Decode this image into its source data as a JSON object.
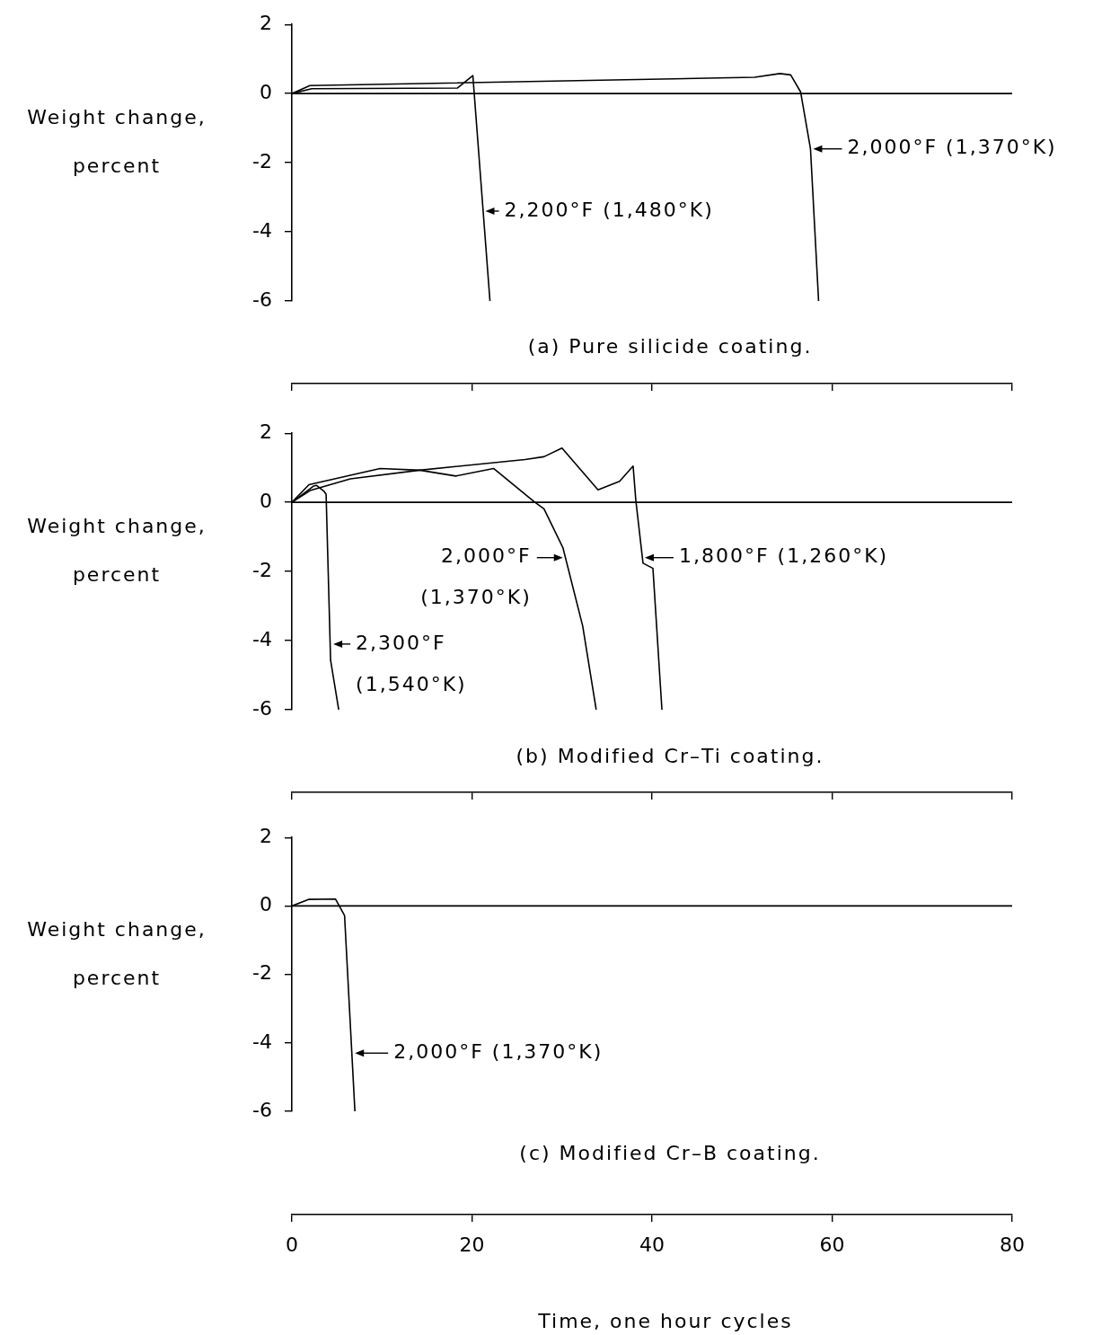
{
  "chart_data": [
    {
      "type": "line",
      "title": "(a) Pure silicide coating.",
      "ylabel": "Weight change, percent",
      "xlim": [
        0,
        80
      ],
      "xticks": [
        0,
        20,
        40,
        60,
        80
      ],
      "ylim": [
        -6,
        2
      ],
      "yticks": [
        -6,
        -4,
        -2,
        0,
        2
      ],
      "tick_labels": "y",
      "grid": false,
      "marker": "none",
      "line_style": "solid",
      "series": [
        {
          "color": "#000000",
          "x": [
            0,
            2.2,
            18.4,
            20.1,
            22.0
          ],
          "values": [
            0,
            0.14,
            0.16,
            0.52,
            -6
          ]
        },
        {
          "color": "#000000",
          "x": [
            0,
            2.0,
            51.4,
            54.2,
            55.4,
            56.5,
            57.6,
            58.5
          ],
          "values": [
            0,
            0.23,
            0.47,
            0.58,
            0.54,
            0.05,
            -1.6,
            -6
          ]
        }
      ],
      "ref_lines": [
        {
          "axis": "y",
          "value": 0,
          "color": "#000000"
        }
      ],
      "annotations": [
        {
          "text": "2,200°F (1,480°K)",
          "x": 21.2,
          "y": -3.4
        },
        {
          "text": "2,000°F (1,370°K)",
          "x": 57.6,
          "y": -1.6
        }
      ]
    },
    {
      "type": "line",
      "title": "(b) Modified Cr–Ti coating.",
      "ylabel": "Weight change, percent",
      "xlim": [
        0,
        80
      ],
      "xticks": [
        0,
        20,
        40,
        60,
        80
      ],
      "ylim": [
        -6,
        2
      ],
      "yticks": [
        -6,
        -4,
        -2,
        0,
        2
      ],
      "tick_labels": "y",
      "grid": false,
      "marker": "none",
      "line_style": "solid",
      "series": [
        {
          "color": "#000000",
          "x": [
            0,
            1.9,
            9.8,
            14.2,
            18.2,
            22.4,
            26.9,
            28.0,
            30.1,
            32.3,
            33.8
          ],
          "values": [
            0,
            0.51,
            0.98,
            0.93,
            0.76,
            0.98,
            0.02,
            -0.19,
            -1.31,
            -3.58,
            -6
          ]
        },
        {
          "color": "#000000",
          "x": [
            0,
            2.1,
            6.5,
            14.2,
            25.9,
            28.0,
            30.0,
            34.0,
            36.4,
            37.9,
            38.2,
            39.0,
            40.1,
            41.1
          ],
          "values": [
            0,
            0.35,
            0.68,
            0.93,
            1.24,
            1.32,
            1.57,
            0.36,
            0.61,
            1.05,
            0.06,
            -1.76,
            -1.91,
            -6
          ]
        },
        {
          "color": "#000000",
          "x": [
            0,
            2.4,
            2.75,
            3.6,
            3.8,
            4.3,
            5.2
          ],
          "values": [
            0,
            0.47,
            0.49,
            0.31,
            0.23,
            -4.57,
            -6
          ]
        }
      ],
      "ref_lines": [
        {
          "axis": "y",
          "value": 0,
          "color": "#000000"
        }
      ],
      "annotations": [
        {
          "text": "2,000°F (1,370°K)",
          "x": 30.4,
          "y": -1.6
        },
        {
          "text": "1,800°F (1,260°K)",
          "x": 38.9,
          "y": -1.6
        },
        {
          "text": "2,300°F (1,540°K)",
          "x": 4.3,
          "y": -4.1
        }
      ]
    },
    {
      "type": "line",
      "title": "(c) Modified Cr–B coating.",
      "ylabel": "Weight change, percent",
      "xlabel": "Time, one hour cycles",
      "xlim": [
        0,
        80
      ],
      "xticks": [
        0,
        20,
        40,
        60,
        80
      ],
      "ylim": [
        -6,
        2
      ],
      "yticks": [
        -6,
        -4,
        -2,
        0,
        2
      ],
      "grid": false,
      "marker": "none",
      "line_style": "solid",
      "series": [
        {
          "color": "#000000",
          "x": [
            0,
            1.84,
            4.85,
            5.85,
            7.0
          ],
          "values": [
            0,
            0.19,
            0.2,
            -0.28,
            -6
          ]
        }
      ],
      "ref_lines": [
        {
          "axis": "y",
          "value": 0,
          "color": "#000000"
        }
      ],
      "annotations": [
        {
          "text": "2,000°F (1,370°K)",
          "x": 6.7,
          "y": -4.3
        }
      ]
    }
  ]
}
